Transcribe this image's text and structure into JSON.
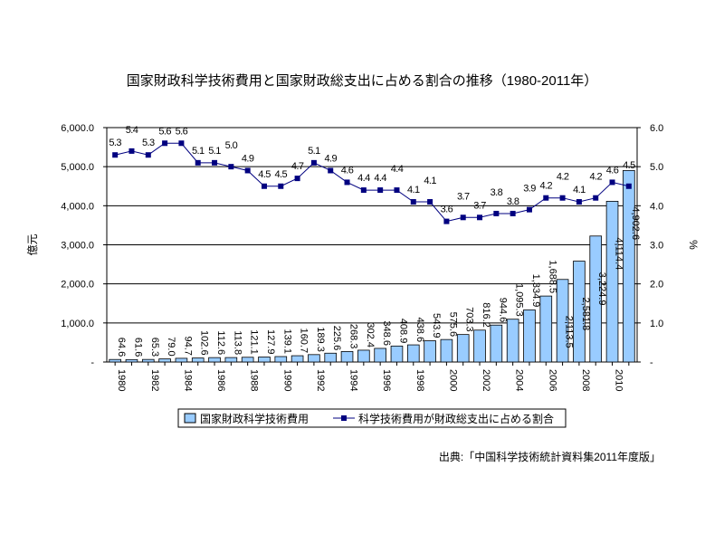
{
  "chart_data": {
    "type": "bar+line",
    "title": "国家財政科学技術費用と国家財政総支出に占める割合の推移（1980-2011年）",
    "source": "出典:「中国科学技術統計資料集2011年度版」",
    "categories": [
      "1980",
      "1981",
      "1982",
      "1983",
      "1984",
      "1985",
      "1986",
      "1987",
      "1988",
      "1989",
      "1990",
      "1991",
      "1992",
      "1993",
      "1994",
      "1995",
      "1996",
      "1997",
      "1998",
      "1999",
      "2000",
      "2001",
      "2002",
      "2003",
      "2004",
      "2005",
      "2006",
      "2007",
      "2008",
      "2009",
      "2010",
      "2011"
    ],
    "x_tick_labels": [
      "1980",
      "1982",
      "1984",
      "1986",
      "1988",
      "1990",
      "1992",
      "1994",
      "1996",
      "1998",
      "2000",
      "2002",
      "2004",
      "2006",
      "2008",
      "2010"
    ],
    "series": [
      {
        "name": "国家財政科学技術費用",
        "type": "bar",
        "axis": "left",
        "color": "#99ccff",
        "values": [
          64.6,
          61.6,
          65.3,
          79.0,
          94.7,
          102.6,
          112.6,
          113.8,
          121.1,
          127.9,
          139.1,
          160.7,
          189.3,
          225.6,
          268.3,
          302.4,
          348.6,
          408.9,
          438.6,
          543.9,
          575.6,
          703.3,
          816.2,
          944.6,
          1095.3,
          1334.9,
          1688.5,
          2113.5,
          2581.8,
          3224.9,
          4114.4,
          4902.6
        ],
        "labels": [
          "64.6",
          "61.6",
          "65.3",
          "79.0",
          "94.7",
          "102.6",
          "112.6",
          "113.8",
          "121.1",
          "127.9",
          "139.1",
          "160.7",
          "189.3",
          "225.6",
          "268.3",
          "302.4",
          "348.6",
          "408.9",
          "438.6",
          "543.9",
          "575.6",
          "703.3",
          "816.2",
          "944.6",
          "1,095.3",
          "1,334.9",
          "1,688.5",
          "2,113.5",
          "2,581.8",
          "3,224.9",
          "4,114.4",
          "4,902.6"
        ]
      },
      {
        "name": "科学技術費用が財政総支出に占める割合",
        "type": "line",
        "axis": "right",
        "color": "#000080",
        "values": [
          5.3,
          5.4,
          5.3,
          5.6,
          5.6,
          5.1,
          5.1,
          5.0,
          4.9,
          4.5,
          4.5,
          4.7,
          5.1,
          4.9,
          4.6,
          4.4,
          4.4,
          4.4,
          4.1,
          4.1,
          3.6,
          3.7,
          3.7,
          3.8,
          3.8,
          3.9,
          4.2,
          4.2,
          4.1,
          4.2,
          4.6,
          4.5
        ]
      }
    ],
    "ylabel": "億元",
    "y2label": "%",
    "ylim": [
      0,
      6000
    ],
    "y2lim": [
      0,
      6.0
    ],
    "y_tick_labels": [
      "-",
      "1,000.0",
      "2,000.0",
      "3,000.0",
      "4,000.0",
      "5,000.0",
      "6,000.0"
    ],
    "y2_tick_labels": [
      "-",
      "1.0",
      "2.0",
      "3.0",
      "4.0",
      "5.0",
      "6.0"
    ],
    "grid": true,
    "legend": "bottom"
  }
}
